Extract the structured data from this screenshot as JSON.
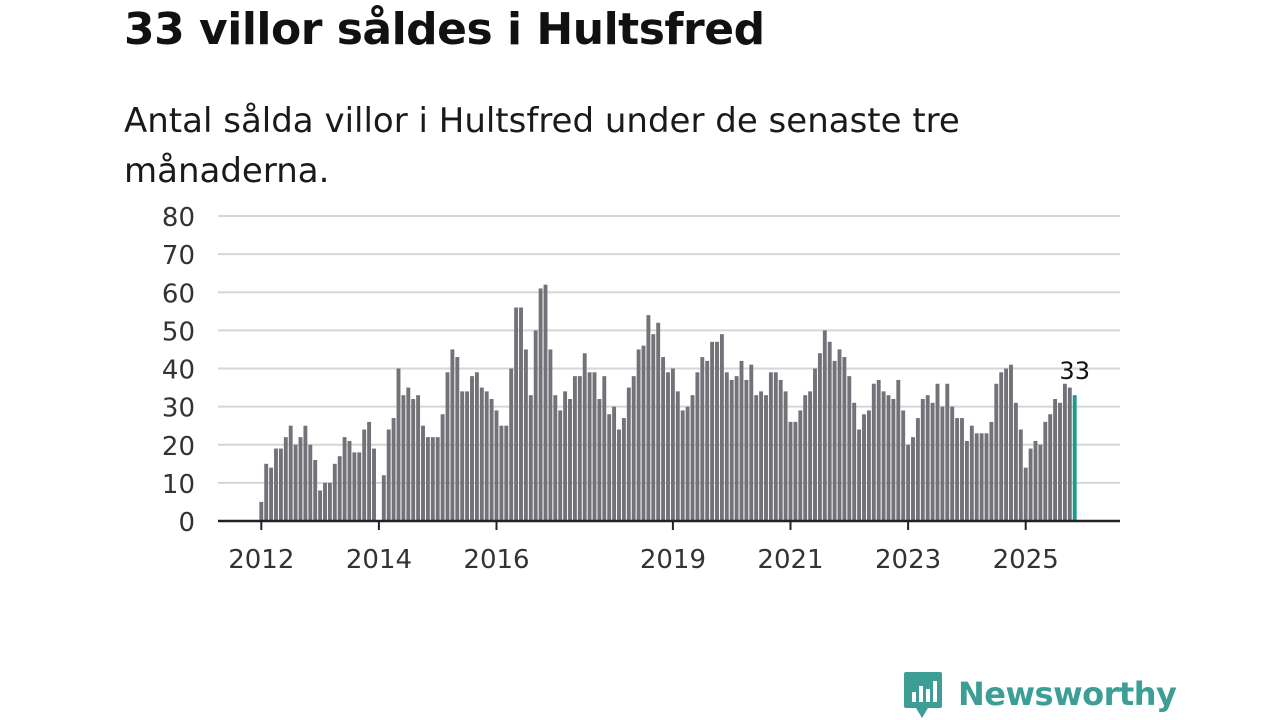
{
  "title": "33 villor såldes i Hultsfred",
  "subtitle": "Antal sålda villor i Hultsfred under de senaste tre månaderna.",
  "brand": {
    "name": "Newsworthy",
    "icon": "newsworthy-logo-icon"
  },
  "colors": {
    "bar": "#737278",
    "highlight": "#1c9a92",
    "grid": "#d6d6d6",
    "axis": "#222222",
    "text": "#333333",
    "brand": "#3c9e95"
  },
  "chart_data": {
    "type": "bar",
    "title": "33 villor såldes i Hultsfred",
    "xlabel": "",
    "ylabel": "",
    "ylim": [
      0,
      80
    ],
    "yticks": [
      0,
      10,
      20,
      30,
      40,
      50,
      60,
      70,
      80
    ],
    "grid": true,
    "start_year": 2012,
    "frequency": "monthly",
    "xtick_labels": [
      {
        "label": "2012",
        "index": 0
      },
      {
        "label": "2014",
        "index": 24
      },
      {
        "label": "2016",
        "index": 48
      },
      {
        "label": "2019",
        "index": 84
      },
      {
        "label": "2021",
        "index": 108
      },
      {
        "label": "2023",
        "index": 132
      },
      {
        "label": "2025",
        "index": 156
      }
    ],
    "values": [
      5,
      15,
      14,
      19,
      19,
      22,
      25,
      20,
      22,
      25,
      20,
      16,
      8,
      10,
      10,
      15,
      17,
      22,
      21,
      18,
      18,
      24,
      26,
      19,
      0,
      12,
      24,
      27,
      40,
      33,
      35,
      32,
      33,
      25,
      22,
      22,
      22,
      28,
      39,
      45,
      43,
      34,
      34,
      38,
      39,
      35,
      34,
      32,
      29,
      25,
      25,
      40,
      56,
      56,
      45,
      33,
      50,
      61,
      62,
      45,
      33,
      29,
      34,
      32,
      38,
      38,
      44,
      39,
      39,
      32,
      38,
      28,
      30,
      24,
      27,
      35,
      38,
      45,
      46,
      54,
      49,
      52,
      43,
      39,
      40,
      34,
      29,
      30,
      33,
      39,
      43,
      42,
      47,
      47,
      49,
      39,
      37,
      38,
      42,
      37,
      41,
      33,
      34,
      33,
      39,
      39,
      37,
      34,
      26,
      26,
      29,
      33,
      34,
      40,
      44,
      50,
      47,
      42,
      45,
      43,
      38,
      31,
      24,
      28,
      29,
      36,
      37,
      34,
      33,
      32,
      37,
      29,
      20,
      22,
      27,
      32,
      33,
      31,
      36,
      30,
      36,
      30,
      27,
      27,
      21,
      25,
      23,
      23,
      23,
      26,
      36,
      39,
      40,
      41,
      31,
      24,
      14,
      19,
      21,
      20,
      26,
      28,
      32,
      31,
      36,
      35,
      33
    ],
    "highlight_last": true,
    "last_label": "33"
  }
}
